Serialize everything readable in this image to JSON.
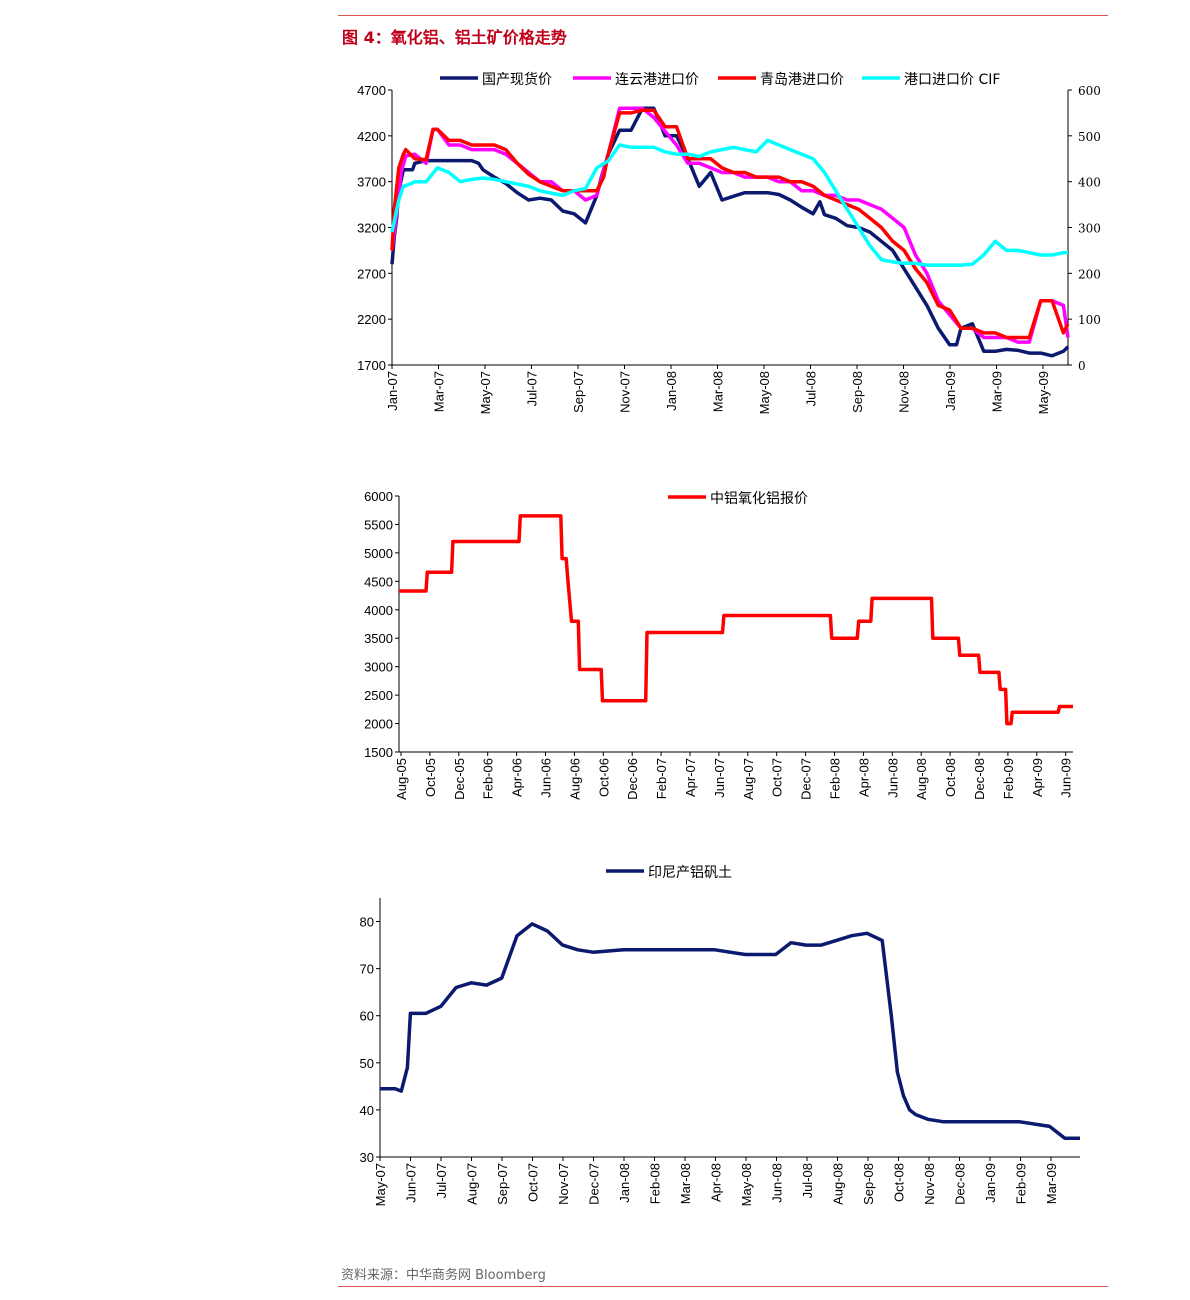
{
  "figure_title": "图 4：氧化铝、铝土矿价格走势",
  "source_note": "资料来源：中华商务网 Bloomberg",
  "colors": {
    "rule": "#d9534f",
    "title": "#c0001a"
  },
  "chart_data": [
    {
      "type": "line",
      "title": "",
      "x_ticks": [
        "Jan-07",
        "Mar-07",
        "May-07",
        "Jul-07",
        "Sep-07",
        "Nov-07",
        "Jan-08",
        "Mar-08",
        "May-08",
        "Jul-08",
        "Sep-08",
        "Nov-08",
        "Jan-09",
        "Mar-09",
        "May-09"
      ],
      "ylim": [
        1700,
        4700
      ],
      "y_ticks": [
        4700,
        4200,
        3700,
        3200,
        2700,
        2200,
        1700
      ],
      "y2lim": [
        0,
        600
      ],
      "y2_ticks": [
        600,
        500,
        400,
        300,
        200,
        100,
        0
      ],
      "legend_position": "top",
      "grid": false,
      "series": [
        {
          "name": "国产现货价",
          "axis": "left",
          "color": "#0b1a6e",
          "x": [
            0,
            0.1,
            0.2,
            0.3,
            0.5,
            0.6,
            0.9,
            1.0,
            1.5,
            2.0,
            2.5,
            3.0,
            3.5,
            3.8,
            4.0,
            4.5,
            5.0,
            5.5,
            6.0,
            6.5,
            7.0,
            7.5,
            8.0,
            8.5,
            9.0,
            9.2,
            9.5,
            10.0,
            10.5,
            11.0,
            11.5,
            12.0,
            12.5,
            13.0,
            13.5,
            14.0,
            14.5,
            15.0,
            15.5,
            16.0,
            16.5,
            17.0,
            17.5,
            18.0,
            18.5,
            18.8,
            19.0,
            19.5,
            20.0,
            20.5,
            21.0,
            21.5,
            22.0,
            22.5,
            23.0,
            23.5,
            24.0,
            24.5,
            24.8,
            25.0,
            25.5,
            26.0,
            26.5,
            27.0,
            27.5,
            28.0,
            28.5,
            29.0,
            29.5,
            29.7
          ],
          "y": [
            2800,
            3100,
            3300,
            3600,
            3830,
            3830,
            3830,
            3900,
            3930,
            3930,
            3930,
            3930,
            3930,
            3900,
            3830,
            3750,
            3680,
            3580,
            3500,
            3520,
            3500,
            3380,
            3350,
            3250,
            3550,
            3750,
            4000,
            4260,
            4260,
            4500,
            4500,
            4200,
            4200,
            3950,
            3650,
            3800,
            3500,
            3540,
            3580,
            3580,
            3580,
            3560,
            3500,
            3420,
            3350,
            3480,
            3340,
            3300,
            3220,
            3200,
            3150,
            3050,
            2950,
            2750,
            2550,
            2350,
            2100,
            1920,
            1920,
            2100,
            2150,
            1850,
            1850,
            1870,
            1860,
            1830,
            1830,
            1800,
            1850,
            1900
          ]
        },
        {
          "name": "连云港进口价",
          "axis": "left",
          "color": "#ff00ff",
          "x": [
            0,
            0.2,
            0.4,
            0.6,
            1.0,
            1.5,
            1.8,
            2.0,
            2.5,
            3.0,
            3.5,
            4.0,
            4.5,
            5.0,
            5.5,
            6.0,
            6.5,
            7.0,
            7.5,
            8.0,
            8.5,
            9.0,
            9.5,
            10.0,
            10.5,
            11.0,
            11.5,
            12.0,
            12.5,
            13.0,
            13.5,
            14.0,
            14.5,
            15.0,
            15.5,
            16.0,
            16.5,
            17.0,
            17.5,
            18.0,
            18.5,
            19.0,
            19.5,
            20.0,
            20.5,
            21.0,
            21.5,
            22.0,
            22.5,
            23.0,
            23.5,
            24.0,
            24.5,
            25.0,
            25.5,
            26.0,
            26.5,
            27.0,
            27.5,
            28.0,
            28.5,
            29.0,
            29.5,
            29.7
          ],
          "y": [
            2950,
            3350,
            3800,
            3980,
            4000,
            3900,
            4270,
            4270,
            4100,
            4100,
            4050,
            4050,
            4050,
            4000,
            3900,
            3800,
            3700,
            3700,
            3600,
            3600,
            3500,
            3550,
            4000,
            4500,
            4500,
            4500,
            4400,
            4250,
            4100,
            3900,
            3900,
            3850,
            3800,
            3800,
            3750,
            3750,
            3750,
            3700,
            3700,
            3600,
            3600,
            3550,
            3550,
            3500,
            3500,
            3450,
            3400,
            3300,
            3200,
            2900,
            2700,
            2400,
            2250,
            2100,
            2100,
            2000,
            2000,
            2000,
            1950,
            1950,
            2400,
            2400,
            2350,
            2000
          ]
        },
        {
          "name": "青岛港进口价",
          "axis": "left",
          "color": "#ff0000",
          "x": [
            0,
            0.1,
            0.3,
            0.5,
            0.6,
            0.8,
            1.0,
            1.5,
            1.8,
            2.0,
            2.5,
            3.0,
            3.5,
            4.0,
            4.5,
            5.0,
            5.5,
            6.0,
            6.5,
            7.0,
            7.5,
            8.0,
            8.5,
            9.0,
            9.3,
            9.5,
            10.0,
            10.5,
            11.0,
            11.5,
            12.0,
            12.5,
            13.0,
            13.5,
            14.0,
            14.5,
            15.0,
            15.5,
            16.0,
            16.5,
            17.0,
            17.5,
            18.0,
            18.5,
            19.0,
            19.5,
            20.0,
            20.5,
            21.0,
            21.5,
            22.0,
            22.5,
            23.0,
            23.5,
            24.0,
            24.5,
            25.0,
            25.5,
            26.0,
            26.5,
            27.0,
            27.5,
            28.0,
            28.5,
            29.0,
            29.5,
            29.7
          ],
          "y": [
            2950,
            3400,
            3850,
            4000,
            4050,
            4000,
            3950,
            3940,
            4270,
            4270,
            4150,
            4150,
            4100,
            4100,
            4100,
            4050,
            3900,
            3780,
            3700,
            3650,
            3600,
            3600,
            3600,
            3600,
            3750,
            4000,
            4450,
            4450,
            4480,
            4480,
            4300,
            4300,
            3950,
            3950,
            3950,
            3850,
            3800,
            3800,
            3750,
            3750,
            3750,
            3700,
            3700,
            3650,
            3550,
            3500,
            3450,
            3400,
            3300,
            3200,
            3050,
            2950,
            2750,
            2600,
            2350,
            2300,
            2100,
            2100,
            2050,
            2050,
            2000,
            2000,
            2000,
            2400,
            2400,
            2050,
            2150
          ]
        },
        {
          "name": "港口进口价 CIF",
          "axis": "right",
          "color": "#00ffff",
          "x": [
            0,
            0.3,
            0.5,
            0.8,
            1.0,
            1.5,
            2.0,
            2.5,
            3.0,
            3.5,
            4.0,
            4.5,
            5.0,
            5.5,
            6.0,
            6.5,
            7.0,
            7.5,
            8.0,
            8.5,
            9.0,
            9.5,
            10.0,
            10.5,
            11.0,
            11.5,
            12.0,
            12.5,
            13.0,
            13.5,
            14.0,
            14.5,
            15.0,
            15.5,
            16.0,
            16.5,
            17.0,
            17.5,
            18.0,
            18.5,
            19.0,
            19.5,
            20.0,
            20.5,
            21.0,
            21.5,
            22.0,
            22.5,
            23.0,
            23.5,
            24.0,
            24.5,
            25.0,
            25.5,
            26.0,
            26.5,
            27.0,
            27.5,
            28.0,
            28.5,
            29.0,
            29.5,
            29.7
          ],
          "y": [
            290,
            360,
            390,
            395,
            400,
            400,
            430,
            420,
            400,
            405,
            408,
            405,
            400,
            395,
            390,
            380,
            375,
            370,
            380,
            385,
            430,
            445,
            480,
            475,
            475,
            475,
            465,
            460,
            460,
            455,
            465,
            470,
            475,
            470,
            465,
            490,
            480,
            470,
            460,
            450,
            420,
            380,
            340,
            300,
            260,
            230,
            225,
            222,
            222,
            218,
            218,
            218,
            218,
            220,
            240,
            270,
            250,
            250,
            245,
            240,
            240,
            245,
            245
          ]
        }
      ]
    },
    {
      "type": "line",
      "title": "",
      "x_ticks": [
        "Aug-05",
        "Oct-05",
        "Dec-05",
        "Feb-06",
        "Apr-06",
        "Jun-06",
        "Aug-06",
        "Oct-06",
        "Dec-06",
        "Feb-07",
        "Apr-07",
        "Jun-07",
        "Aug-07",
        "Oct-07",
        "Dec-07",
        "Feb-08",
        "Apr-08",
        "Jun-08",
        "Aug-08",
        "Oct-08",
        "Dec-08",
        "Feb-09",
        "Apr-09",
        "Jun-09"
      ],
      "ylim": [
        1500,
        6000
      ],
      "y_ticks": [
        6000,
        5500,
        5000,
        4500,
        4000,
        3500,
        3000,
        2500,
        2000,
        1500
      ],
      "legend_position": "top-right",
      "grid": false,
      "series": [
        {
          "name": "中铝氧化铝报价",
          "color": "#ff0000",
          "x": [
            0,
            2.0,
            2.1,
            3.9,
            4.0,
            8.9,
            9.0,
            10.9,
            11.0,
            11.5,
            11.6,
            12.0,
            12.1,
            12.4,
            12.5,
            12.8,
            13.0,
            13.3,
            13.4,
            14.3,
            14.4,
            15.0,
            15.1,
            16.5,
            16.6,
            17.0,
            17.1,
            18.3,
            18.4,
            19.0,
            19.1,
            24.0,
            24.1,
            26.0,
            26.1,
            27.5,
            27.6,
            28.0,
            28.1,
            32.0,
            32.1,
            34.0,
            34.1,
            35.0,
            35.1,
            38.0,
            38.1,
            38.9,
            39.0,
            39.5,
            39.6,
            40.0,
            40.1,
            41.5,
            41.6,
            43.0,
            43.1,
            44.5,
            44.6,
            45.0,
            45.1,
            45.4,
            45.5,
            47.3,
            47.4,
            48.9,
            49.0,
            50.0
          ],
          "y": [
            4330,
            4330,
            4660,
            4660,
            5200,
            5200,
            5650,
            5650,
            5650,
            5650,
            5650,
            5650,
            4900,
            4900,
            4600,
            3800,
            3800,
            3800,
            2950,
            2950,
            2950,
            2950,
            2400,
            2400,
            2400,
            2400,
            2400,
            2400,
            3600,
            3600,
            3600,
            3600,
            3900,
            3900,
            3900,
            3900,
            3900,
            3900,
            3900,
            3900,
            3500,
            3500,
            3800,
            3800,
            4200,
            4200,
            4200,
            4200,
            4200,
            4200,
            3500,
            3500,
            3500,
            3500,
            3200,
            3200,
            2900,
            2900,
            2600,
            2600,
            2000,
            2000,
            2200,
            2200,
            2200,
            2200,
            2300,
            2300
          ]
        }
      ]
    },
    {
      "type": "line",
      "title": "",
      "x_ticks": [
        "May-07",
        "Jun-07",
        "Jul-07",
        "Aug-07",
        "Sep-07",
        "Oct-07",
        "Nov-07",
        "Dec-07",
        "Jan-08",
        "Feb-08",
        "Mar-08",
        "Apr-08",
        "May-08",
        "Jun-08",
        "Jul-08",
        "Aug-08",
        "Sep-08",
        "Oct-08",
        "Nov-08",
        "Dec-08",
        "Jan-09",
        "Feb-09",
        "Mar-09"
      ],
      "ylim": [
        30,
        85
      ],
      "y_ticks": [
        80,
        70,
        60,
        50,
        40,
        30
      ],
      "legend_position": "top",
      "grid": false,
      "series": [
        {
          "name": "印尼产铝矾土",
          "color": "#0b1a6e",
          "x": [
            0,
            0.5,
            0.7,
            0.9,
            1.0,
            1.5,
            2.0,
            2.5,
            3.0,
            3.5,
            4.0,
            4.5,
            5.0,
            5.5,
            6.0,
            6.5,
            7.0,
            8.0,
            9.0,
            10.0,
            11.0,
            12.0,
            13.0,
            13.5,
            14.0,
            14.5,
            15.0,
            15.5,
            16.0,
            16.5,
            16.8,
            17.0,
            17.2,
            17.4,
            17.6,
            18.0,
            18.5,
            19.0,
            19.5,
            20.0,
            21.0,
            22.0,
            22.5,
            23.0
          ],
          "y": [
            44.5,
            44.5,
            44,
            49,
            60.5,
            60.5,
            62,
            66,
            67,
            66.5,
            68,
            77,
            79.5,
            78,
            75,
            74,
            73.5,
            74,
            74,
            74,
            74,
            73,
            73,
            75.5,
            75,
            75,
            76,
            77,
            77.5,
            76,
            60,
            48,
            43,
            40,
            39,
            38,
            37.5,
            37.5,
            37.5,
            37.5,
            37.5,
            36.5,
            34,
            34
          ]
        }
      ]
    }
  ]
}
